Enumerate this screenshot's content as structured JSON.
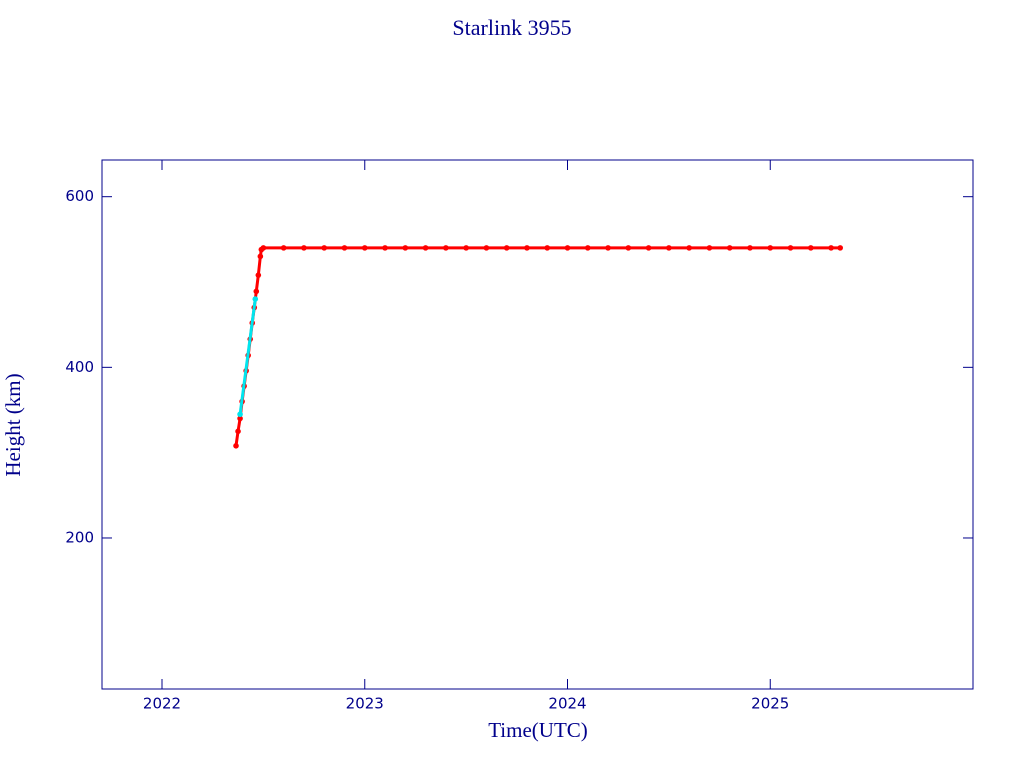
{
  "chart_data": {
    "type": "scatter",
    "title": "Starlink 3955",
    "x_label": "Time(UTC)",
    "y_label": "Height (km)",
    "xlim": [
      2021.704,
      2026.0
    ],
    "ylim": [
      23,
      643
    ],
    "xticks": [
      2022,
      2023,
      2024,
      2025
    ],
    "yticks": [
      200,
      400,
      600
    ],
    "series": [
      {
        "color": "#ff0000",
        "x": [
          2022.365,
          2022.375,
          2022.385,
          2022.395,
          2022.405,
          2022.415,
          2022.425,
          2022.435,
          2022.445,
          2022.455,
          2022.465,
          2022.475,
          2022.485,
          2022.49,
          2022.5,
          2022.6,
          2022.7,
          2022.8,
          2022.9,
          2023.0,
          2023.1,
          2023.2,
          2023.3,
          2023.4,
          2023.5,
          2023.6,
          2023.7,
          2023.8,
          2023.9,
          2024.0,
          2024.1,
          2024.2,
          2024.3,
          2024.4,
          2024.5,
          2024.6,
          2024.7,
          2024.8,
          2024.9,
          2025.0,
          2025.1,
          2025.2,
          2025.3,
          2025.345
        ],
        "values": [
          308,
          325,
          340,
          360,
          378,
          396,
          414,
          433,
          452,
          470,
          489,
          508,
          530,
          538,
          540,
          540,
          540,
          540,
          540,
          540,
          540,
          540,
          540,
          540,
          540,
          540,
          540,
          540,
          540,
          540,
          540,
          540,
          540,
          540,
          540,
          540,
          540,
          540,
          540,
          540,
          540,
          540,
          540,
          540
        ]
      },
      {
        "color": "#00e5ee",
        "x": [
          2022.385,
          2022.46
        ],
        "values": [
          345,
          480
        ]
      }
    ]
  }
}
